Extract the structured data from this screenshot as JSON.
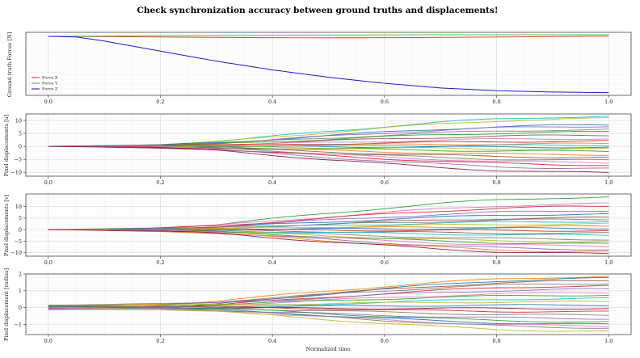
{
  "figure_title": "Check synchronization accuracy between ground truths and displacements!",
  "x_label": "Normalized time",
  "chart_data": [
    {
      "type": "line",
      "ylabel": "Ground truth Forces [N]",
      "xlim": [
        -0.04,
        1.04
      ],
      "ylim": [
        -4.4,
        0.3
      ],
      "x_ticks": [
        0.0,
        0.2,
        0.4,
        0.6,
        0.8,
        1.0
      ],
      "x_tick_labels": [
        "0.0",
        "0.2",
        "0.4",
        "0.6",
        "0.8",
        "1.0"
      ],
      "y_ticks": [],
      "y_tick_labels": [],
      "grid": true,
      "legend_position": "lower-left",
      "x": [
        0.0,
        0.05,
        0.1,
        0.2,
        0.3,
        0.4,
        0.5,
        0.6,
        0.7,
        0.8,
        0.9,
        1.0
      ],
      "series": [
        {
          "name": "Force X",
          "color": "#d94e2b",
          "values": [
            0.0,
            -0.01,
            -0.02,
            -0.05,
            -0.08,
            -0.1,
            -0.11,
            -0.1,
            -0.08,
            -0.05,
            -0.02,
            0.02
          ]
        },
        {
          "name": "Force Y",
          "color": "#4cc244",
          "values": [
            0.0,
            0.01,
            0.02,
            0.04,
            0.06,
            0.08,
            0.1,
            0.11,
            0.12,
            0.12,
            0.12,
            0.12
          ]
        },
        {
          "name": "Force Z",
          "color": "#1a1ad0",
          "values": [
            0.0,
            -0.05,
            -0.35,
            -1.1,
            -1.85,
            -2.5,
            -3.05,
            -3.5,
            -3.85,
            -4.05,
            -4.15,
            -4.2
          ]
        }
      ]
    },
    {
      "type": "line",
      "ylabel": "Pixel displacements [u]",
      "xlim": [
        -0.04,
        1.04
      ],
      "ylim": [
        -11.5,
        12.5
      ],
      "x_ticks": [
        0.0,
        0.2,
        0.4,
        0.6,
        0.8,
        1.0
      ],
      "x_tick_labels": [
        "0.0",
        "0.2",
        "0.4",
        "0.6",
        "0.8",
        "1.0"
      ],
      "y_ticks": [
        -10,
        -5,
        0,
        5,
        10
      ],
      "y_tick_labels": [
        "−10",
        "−5",
        "0",
        "5",
        "10"
      ],
      "grid": true,
      "profile": [
        0,
        0.02,
        0.06,
        0.16,
        0.33,
        0.5,
        0.66,
        0.8,
        0.91,
        0.97,
        1.0
      ],
      "final_values": [
        11.6,
        10.8,
        8.3,
        7.8,
        6.5,
        5.6,
        4.3,
        3.0,
        2.0,
        1.0,
        0.4,
        -0.3,
        -1.0,
        -1.9,
        -3.2,
        -4.3,
        -5.4,
        -6.3,
        -7.2,
        -8.6,
        -10.2
      ],
      "colors": [
        "#17becf",
        "#bcbd22",
        "#1f77b4",
        "#9467bd",
        "#7f7f7f",
        "#2ca02c",
        "#8c564b",
        "#e377c2",
        "#d62728",
        "#ff7f0e",
        "#17becf",
        "#1f77b4",
        "#bcbd22",
        "#2ca02c",
        "#ff7f0e",
        "#8c564b",
        "#7f7f7f",
        "#e377c2",
        "#d62728",
        "#9467bd",
        "#8b1a3a"
      ]
    },
    {
      "type": "line",
      "ylabel": "Pixel displacements [v]",
      "xlim": [
        -0.04,
        1.04
      ],
      "ylim": [
        -11.5,
        15.5
      ],
      "x_ticks": [
        0.0,
        0.2,
        0.4,
        0.6,
        0.8,
        1.0
      ],
      "x_tick_labels": [
        "0.0",
        "0.2",
        "0.4",
        "0.6",
        "0.8",
        "1.0"
      ],
      "y_ticks": [
        -10,
        -5,
        0,
        5,
        10
      ],
      "y_tick_labels": [
        "−10",
        "−5",
        "0",
        "5",
        "10"
      ],
      "grid": true,
      "profile": [
        0,
        0.02,
        0.06,
        0.16,
        0.33,
        0.5,
        0.66,
        0.8,
        0.91,
        0.97,
        1.0
      ],
      "final_values": [
        14.2,
        11.3,
        10.2,
        8.3,
        6.8,
        5.2,
        4.5,
        3.6,
        2.5,
        1.4,
        0.6,
        -0.4,
        -1.6,
        -2.4,
        -4.2,
        -5.3,
        -6.2,
        -7.2,
        -8.6,
        -9.6,
        -10.5
      ],
      "colors": [
        "#2ca02c",
        "#e377c2",
        "#d62728",
        "#9467bd",
        "#1f77b4",
        "#8c564b",
        "#7f7f7f",
        "#17becf",
        "#bcbd22",
        "#ff7f0e",
        "#1f77b4",
        "#d62728",
        "#8c564b",
        "#17becf",
        "#7f7f7f",
        "#bcbd22",
        "#2ca02c",
        "#e377c2",
        "#9467bd",
        "#ff7f0e",
        "#8b1a3a"
      ]
    },
    {
      "type": "line",
      "ylabel": "Pixel displacement [radius]",
      "xlim": [
        -0.04,
        1.04
      ],
      "ylim": [
        -1.6,
        2.0
      ],
      "x_ticks": [
        0.0,
        0.2,
        0.4,
        0.6,
        0.8,
        1.0
      ],
      "x_tick_labels": [
        "0.0",
        "0.2",
        "0.4",
        "0.6",
        "0.8",
        "1.0"
      ],
      "y_ticks": [
        -1,
        0,
        1,
        2
      ],
      "y_tick_labels": [
        "−1",
        "0",
        "1",
        "2"
      ],
      "grid": true,
      "profile": [
        0,
        0.02,
        0.06,
        0.16,
        0.33,
        0.5,
        0.66,
        0.8,
        0.91,
        0.97,
        1.0
      ],
      "start_values": [
        0.12,
        -0.1,
        0.05,
        0.15,
        -0.05,
        0.1,
        0.0,
        0.08,
        -0.12,
        0.14,
        0.02,
        -0.03,
        0.1,
        0.06,
        -0.08,
        0.12,
        0.04,
        -0.02,
        0.1,
        0.0
      ],
      "final_values": [
        1.85,
        1.75,
        1.6,
        1.45,
        1.3,
        1.1,
        0.9,
        0.75,
        0.55,
        0.35,
        0.15,
        -0.05,
        -0.25,
        -0.45,
        -0.65,
        -0.85,
        -1.0,
        -1.1,
        -1.2,
        -1.42
      ],
      "colors": [
        "#ff7f0e",
        "#1f77b4",
        "#8c564b",
        "#7f7f7f",
        "#d62728",
        "#9467bd",
        "#e377c2",
        "#2ca02c",
        "#17becf",
        "#bcbd22",
        "#1f77b4",
        "#8b1a3a",
        "#d62728",
        "#7f7f7f",
        "#9467bd",
        "#2ca02c",
        "#1f77b4",
        "#e377c2",
        "#7f7f7f",
        "#bcbd22"
      ]
    }
  ]
}
